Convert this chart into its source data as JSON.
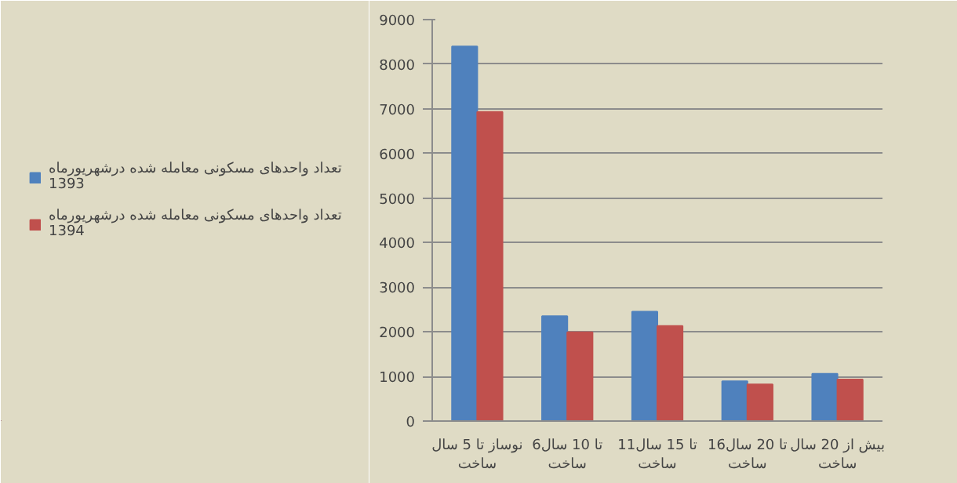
{
  "chart_data": {
    "type": "bar",
    "categories": [
      "نوساز تا 5 سال\nساخت",
      "6تا 10 سال\nساخت",
      "11تا 15 سال\nساخت",
      "16تا 20 سال\nساخت",
      "بیش از 20 سال\nساخت"
    ],
    "series": [
      {
        "name": "تعداد واحدهای مسکونی معامله شده درشهریورماه\n1393",
        "color": "#4f81bd",
        "values": [
          8400,
          2350,
          2450,
          890,
          1060
        ]
      },
      {
        "name": "تعداد واحدهای مسکونی معامله شده درشهریورماه\n1394",
        "color": "#c0504d",
        "values": [
          6930,
          1990,
          2130,
          820,
          930
        ]
      }
    ],
    "ylim": [
      0,
      9000
    ],
    "yticks": [
      0,
      1000,
      2000,
      3000,
      4000,
      5000,
      6000,
      7000,
      8000,
      9000
    ],
    "grid": "y",
    "legend": "left"
  }
}
